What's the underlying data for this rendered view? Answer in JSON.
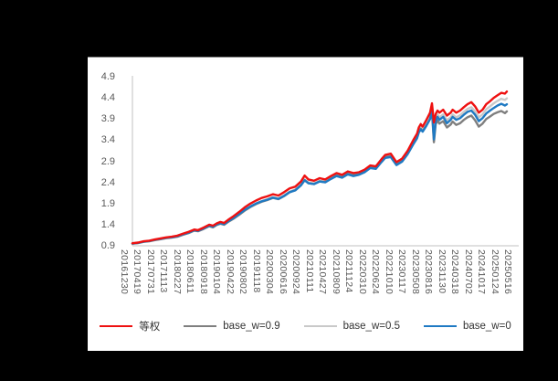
{
  "canvas": {
    "background": "#000000",
    "panel_background": "#ffffff",
    "panel_top_border": "#808080"
  },
  "chart_data": {
    "type": "line",
    "title": "",
    "xlabel": "",
    "ylabel": "",
    "ylim": [
      0.9,
      4.9
    ],
    "y_ticks": [
      4.9,
      4.4,
      3.9,
      3.4,
      2.9,
      2.4,
      1.9,
      1.4,
      0.9
    ],
    "grid": false,
    "legend_position": "bottom",
    "x_label_rotation": 90,
    "axis_color": "#C0C0C0",
    "tick_label_color": "#595959",
    "x_tick_labels": [
      "20161230",
      "20170419",
      "20170731",
      "20171113",
      "20180227",
      "20180611",
      "20180918",
      "20190104",
      "20190422",
      "20190802",
      "20191118",
      "20200304",
      "20200616",
      "20200924",
      "20210111",
      "20210427",
      "20210809",
      "20211124",
      "20220310",
      "20220624",
      "20221010",
      "20230117",
      "20230508",
      "20230816",
      "20231130",
      "20240318",
      "20240702",
      "20241017",
      "20250124",
      "20250516"
    ],
    "t": [
      0,
      0.015,
      0.03,
      0.045,
      0.06,
      0.075,
      0.09,
      0.105,
      0.12,
      0.135,
      0.15,
      0.165,
      0.175,
      0.19,
      0.205,
      0.215,
      0.225,
      0.235,
      0.245,
      0.255,
      0.27,
      0.285,
      0.3,
      0.315,
      0.33,
      0.345,
      0.36,
      0.375,
      0.39,
      0.405,
      0.42,
      0.435,
      0.45,
      0.46,
      0.47,
      0.485,
      0.5,
      0.515,
      0.53,
      0.545,
      0.56,
      0.575,
      0.59,
      0.605,
      0.62,
      0.635,
      0.65,
      0.665,
      0.675,
      0.69,
      0.705,
      0.72,
      0.735,
      0.75,
      0.76,
      0.765,
      0.77,
      0.775,
      0.785,
      0.795,
      0.8,
      0.805,
      0.81,
      0.815,
      0.82,
      0.83,
      0.84,
      0.85,
      0.855,
      0.865,
      0.875,
      0.885,
      0.895,
      0.905,
      0.915,
      0.925,
      0.935,
      0.945,
      0.955,
      0.965,
      0.975,
      0.985,
      0.995,
      1.0
    ],
    "draw_order": [
      2,
      1,
      3,
      0
    ],
    "series": [
      {
        "name": "等权",
        "color": "#EE1111",
        "values": [
          0.96,
          0.975,
          1.005,
          1.02,
          1.05,
          1.075,
          1.1,
          1.115,
          1.14,
          1.185,
          1.23,
          1.285,
          1.27,
          1.33,
          1.4,
          1.375,
          1.43,
          1.465,
          1.44,
          1.51,
          1.6,
          1.7,
          1.81,
          1.9,
          1.97,
          2.03,
          2.07,
          2.12,
          2.09,
          2.17,
          2.26,
          2.3,
          2.42,
          2.56,
          2.47,
          2.44,
          2.5,
          2.47,
          2.55,
          2.62,
          2.58,
          2.66,
          2.62,
          2.64,
          2.7,
          2.8,
          2.78,
          2.95,
          3.05,
          3.08,
          2.88,
          2.96,
          3.15,
          3.4,
          3.55,
          3.7,
          3.78,
          3.72,
          3.88,
          4.05,
          4.27,
          3.82,
          4.02,
          4.1,
          4.05,
          4.12,
          3.98,
          4.05,
          4.12,
          4.05,
          4.1,
          4.18,
          4.25,
          4.3,
          4.2,
          4.05,
          4.12,
          4.25,
          4.32,
          4.4,
          4.46,
          4.52,
          4.5,
          4.55
        ]
      },
      {
        "name": "base_w=0.9",
        "color": "#7F7F7F",
        "values": [
          0.95,
          0.963,
          0.993,
          1.007,
          1.035,
          1.055,
          1.08,
          1.092,
          1.115,
          1.16,
          1.2,
          1.258,
          1.243,
          1.298,
          1.362,
          1.337,
          1.392,
          1.422,
          1.397,
          1.462,
          1.54,
          1.632,
          1.732,
          1.817,
          1.887,
          1.94,
          1.982,
          2.032,
          2.002,
          2.077,
          2.167,
          2.212,
          2.332,
          2.452,
          2.382,
          2.362,
          2.425,
          2.407,
          2.487,
          2.567,
          2.527,
          2.607,
          2.567,
          2.597,
          2.657,
          2.757,
          2.737,
          2.897,
          2.997,
          3.022,
          2.832,
          2.912,
          3.092,
          3.32,
          3.46,
          3.6,
          3.67,
          3.61,
          3.75,
          3.9,
          4.08,
          3.35,
          3.78,
          3.86,
          3.79,
          3.85,
          3.7,
          3.77,
          3.84,
          3.76,
          3.8,
          3.88,
          3.94,
          3.98,
          3.87,
          3.72,
          3.79,
          3.9,
          3.96,
          4.02,
          4.06,
          4.09,
          4.04,
          4.08
        ]
      },
      {
        "name": "base_w=0.5",
        "color": "#C9C9C9",
        "values": [
          0.955,
          0.968,
          0.998,
          1.012,
          1.04,
          1.06,
          1.085,
          1.098,
          1.12,
          1.165,
          1.205,
          1.265,
          1.25,
          1.305,
          1.37,
          1.345,
          1.4,
          1.43,
          1.405,
          1.47,
          1.55,
          1.645,
          1.745,
          1.83,
          1.9,
          1.955,
          2.0,
          2.05,
          2.02,
          2.095,
          2.185,
          2.23,
          2.35,
          2.47,
          2.4,
          2.38,
          2.44,
          2.42,
          2.5,
          2.57,
          2.53,
          2.61,
          2.57,
          2.6,
          2.66,
          2.76,
          2.74,
          2.9,
          3.0,
          3.03,
          2.84,
          2.92,
          3.1,
          3.34,
          3.48,
          3.62,
          3.7,
          3.64,
          3.79,
          3.95,
          4.15,
          3.6,
          3.9,
          4.0,
          3.94,
          4.01,
          3.87,
          3.94,
          4.01,
          3.94,
          3.99,
          4.07,
          4.14,
          4.18,
          4.08,
          3.94,
          4.01,
          4.13,
          4.2,
          4.27,
          4.33,
          4.38,
          4.35,
          4.39
        ]
      },
      {
        "name": "base_w=0",
        "color": "#1F7AC3",
        "values": [
          0.955,
          0.97,
          1.0,
          1.015,
          1.045,
          1.065,
          1.09,
          1.1,
          1.125,
          1.17,
          1.21,
          1.27,
          1.255,
          1.31,
          1.375,
          1.35,
          1.405,
          1.435,
          1.41,
          1.475,
          1.555,
          1.65,
          1.75,
          1.83,
          1.9,
          1.95,
          1.99,
          2.04,
          2.01,
          2.08,
          2.17,
          2.21,
          2.33,
          2.45,
          2.38,
          2.36,
          2.42,
          2.4,
          2.48,
          2.55,
          2.51,
          2.59,
          2.55,
          2.58,
          2.64,
          2.74,
          2.72,
          2.88,
          2.98,
          3.0,
          2.81,
          2.89,
          3.07,
          3.3,
          3.44,
          3.58,
          3.65,
          3.6,
          3.74,
          3.9,
          4.1,
          3.42,
          3.85,
          3.95,
          3.88,
          3.95,
          3.8,
          3.88,
          3.95,
          3.88,
          3.92,
          4.0,
          4.07,
          4.1,
          4.0,
          3.85,
          3.92,
          4.03,
          4.1,
          4.16,
          4.22,
          4.26,
          4.22,
          4.25
        ]
      }
    ]
  }
}
